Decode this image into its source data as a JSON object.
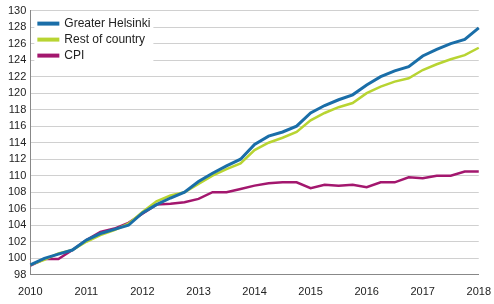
{
  "chart_data": {
    "type": "line",
    "categories": [
      "2010",
      null,
      null,
      null,
      "2011",
      null,
      null,
      null,
      "2012",
      null,
      null,
      null,
      "2013",
      null,
      null,
      null,
      "2014",
      null,
      null,
      null,
      "2015",
      null,
      null,
      null,
      "2016",
      null,
      null,
      null,
      "2017",
      null,
      null,
      null,
      "2018"
    ],
    "series": [
      {
        "name": "Greater Helsinki",
        "color": "#1a6ea8",
        "values": [
          99.2,
          100.0,
          100.5,
          101.0,
          102.2,
          103.0,
          103.5,
          104.0,
          105.5,
          106.5,
          107.3,
          108.0,
          109.3,
          110.3,
          111.2,
          112.0,
          113.8,
          114.8,
          115.3,
          116.0,
          117.6,
          118.5,
          119.2,
          119.8,
          121.0,
          122.0,
          122.7,
          123.2,
          124.5,
          125.3,
          126.0,
          126.5,
          127.9
        ]
      },
      {
        "name": "Rest of country",
        "color": "#b8d432",
        "values": [
          99.2,
          99.8,
          100.6,
          101.0,
          102.0,
          102.8,
          103.4,
          104.2,
          105.6,
          106.9,
          107.6,
          108.0,
          109.0,
          110.0,
          110.8,
          111.5,
          113.1,
          114.0,
          114.6,
          115.3,
          116.7,
          117.6,
          118.3,
          118.8,
          120.0,
          120.8,
          121.4,
          121.8,
          122.8,
          123.5,
          124.1,
          124.6,
          125.5
        ]
      },
      {
        "name": "CPI",
        "color": "#a3176e",
        "values": [
          99.1,
          99.9,
          99.9,
          101.0,
          102.2,
          103.2,
          103.6,
          104.3,
          105.4,
          106.5,
          106.6,
          106.8,
          107.2,
          108.0,
          108.0,
          108.4,
          108.8,
          109.1,
          109.2,
          109.2,
          108.5,
          108.9,
          108.8,
          108.9,
          108.6,
          109.2,
          109.2,
          109.8,
          109.7,
          110.0,
          110.0,
          110.5,
          110.5
        ]
      }
    ],
    "ylim": [
      98,
      130
    ],
    "yticks": [
      98,
      100,
      102,
      104,
      106,
      108,
      110,
      112,
      114,
      116,
      118,
      120,
      122,
      124,
      126,
      128,
      130
    ],
    "grid": true,
    "legend": "upper left"
  }
}
